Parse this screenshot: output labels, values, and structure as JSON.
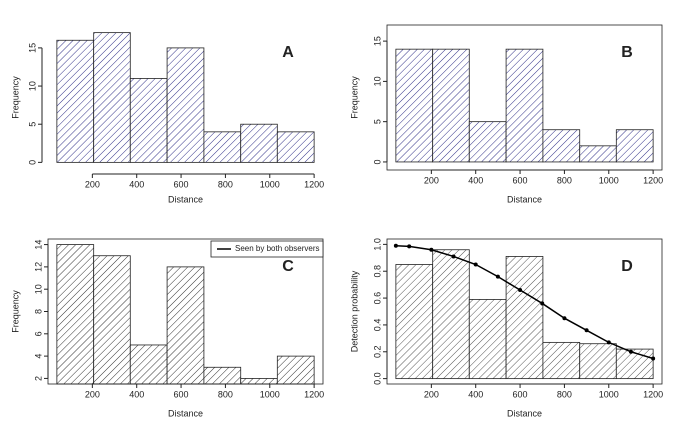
{
  "chart_data": [
    {
      "type": "histogram",
      "label": "A",
      "xlabel": "Distance",
      "ylabel": "Frequency",
      "bins": [
        40,
        206,
        371,
        537,
        703,
        869,
        1034,
        1200
      ],
      "values": [
        16,
        17,
        11,
        15,
        4,
        5,
        4
      ],
      "color": "#33338a",
      "xlim": [
        0,
        1240
      ],
      "xticks": [
        200,
        400,
        600,
        800,
        1000,
        1200
      ],
      "ylim": [
        -1,
        18
      ],
      "yticks": [
        0,
        5,
        10,
        15
      ],
      "box": false
    },
    {
      "type": "histogram",
      "label": "B",
      "xlabel": "Distance",
      "ylabel": "Frequency",
      "bins": [
        40,
        206,
        371,
        537,
        703,
        869,
        1034,
        1200
      ],
      "values": [
        14,
        14,
        5,
        14,
        4,
        2,
        4
      ],
      "color": "#33338a",
      "xlim": [
        0,
        1240
      ],
      "xticks": [
        200,
        400,
        600,
        800,
        1000,
        1200
      ],
      "ylim": [
        -1,
        17
      ],
      "yticks": [
        0,
        5,
        10,
        15
      ],
      "box": true
    },
    {
      "type": "histogram",
      "label": "C",
      "xlabel": "Distance",
      "ylabel": "Frequency",
      "bins": [
        40,
        206,
        371,
        537,
        703,
        869,
        1034,
        1200
      ],
      "values": [
        14,
        13,
        5,
        12,
        3,
        2,
        4
      ],
      "color": "#333333",
      "xlim": [
        0,
        1240
      ],
      "xticks": [
        200,
        400,
        600,
        800,
        1000,
        1200
      ],
      "ylim": [
        1.5,
        14.5
      ],
      "yticks": [
        2,
        4,
        6,
        8,
        10,
        12,
        14
      ],
      "box": true,
      "legend_label": "Seen by both observers"
    },
    {
      "type": "histogram",
      "label": "D",
      "xlabel": "Distance",
      "ylabel": "Detection probability",
      "bins": [
        40,
        206,
        371,
        537,
        703,
        869,
        1034,
        1200
      ],
      "values": [
        0.85,
        0.96,
        0.59,
        0.91,
        0.27,
        0.26,
        0.22
      ],
      "color": "#555555",
      "xlim": [
        0,
        1240
      ],
      "xticks": [
        200,
        400,
        600,
        800,
        1000,
        1200
      ],
      "ylim": [
        -0.04,
        1.04
      ],
      "yticks": [
        {
          "value": 0,
          "label": "0.0"
        },
        0.2,
        0.4,
        0.6,
        0.8,
        {
          "value": 1,
          "label": "1.0"
        }
      ],
      "box": true,
      "curve": {
        "color": "#000000",
        "x": [
          40,
          100,
          200,
          300,
          400,
          500,
          600,
          700,
          800,
          900,
          1000,
          1100,
          1200
        ],
        "values": [
          0.99,
          0.985,
          0.96,
          0.91,
          0.85,
          0.76,
          0.66,
          0.56,
          0.45,
          0.36,
          0.27,
          0.2,
          0.15
        ]
      }
    }
  ]
}
